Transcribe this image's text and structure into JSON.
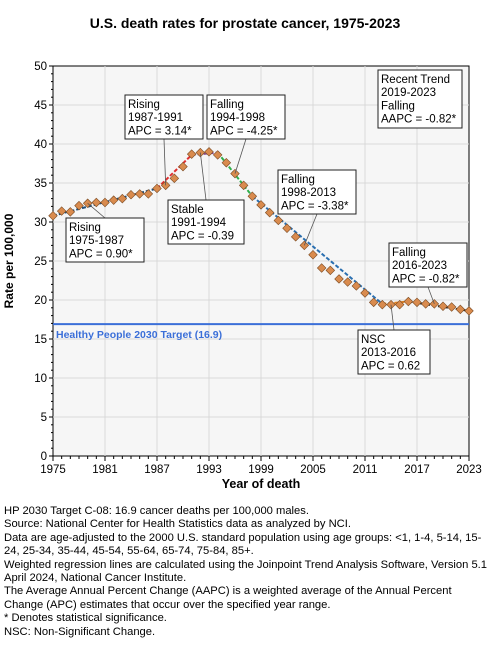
{
  "chart_data": {
    "type": "line",
    "title": "U.S. death rates for prostate cancer, 1975-2023",
    "xlabel": "Year of death",
    "ylabel": "Rate per 100,000",
    "xlim": [
      1975,
      2023
    ],
    "ylim": [
      0,
      50
    ],
    "x_ticks": [
      "1975",
      "1981",
      "1987",
      "1993",
      "1999",
      "2005",
      "2011",
      "2017",
      "2023"
    ],
    "y_ticks": [
      "0",
      "5",
      "10",
      "15",
      "20",
      "25",
      "30",
      "35",
      "40",
      "45",
      "50"
    ],
    "grid": true,
    "observed": {
      "x": [
        1975,
        1976,
        1977,
        1978,
        1979,
        1980,
        1981,
        1982,
        1983,
        1984,
        1985,
        1986,
        1987,
        1988,
        1989,
        1990,
        1991,
        1992,
        1993,
        1994,
        1995,
        1996,
        1997,
        1998,
        1999,
        2000,
        2001,
        2002,
        2003,
        2004,
        2005,
        2006,
        2007,
        2008,
        2009,
        2010,
        2011,
        2012,
        2013,
        2014,
        2015,
        2016,
        2017,
        2018,
        2019,
        2020,
        2021,
        2022,
        2023
      ],
      "y": [
        30.8,
        31.4,
        31.3,
        32.1,
        32.4,
        32.5,
        32.5,
        32.8,
        33.0,
        33.5,
        33.6,
        33.6,
        34.3,
        34.7,
        35.6,
        37.1,
        38.7,
        38.9,
        39.0,
        38.6,
        37.6,
        36.2,
        34.7,
        33.3,
        32.2,
        31.2,
        30.2,
        29.2,
        28.1,
        27.0,
        25.8,
        24.1,
        23.8,
        22.7,
        22.3,
        21.8,
        20.9,
        19.7,
        19.4,
        19.4,
        19.4,
        19.8,
        19.7,
        19.5,
        19.5,
        19.2,
        19.1,
        18.8,
        18.6
      ]
    },
    "segments": [
      {
        "start": 1975,
        "end": 1987,
        "y_start": 30.8,
        "y_end": 34.3,
        "color": "#1f4e79"
      },
      {
        "start": 1987,
        "end": 1991,
        "y_start": 34.3,
        "y_end": 38.6,
        "color": "#e03030"
      },
      {
        "start": 1991,
        "end": 1994,
        "y_start": 38.6,
        "y_end": 38.9,
        "color": "#8b4a8b"
      },
      {
        "start": 1994,
        "end": 1998,
        "y_start": 38.9,
        "y_end": 33.3,
        "color": "#2eae4a"
      },
      {
        "start": 1998,
        "end": 2013,
        "y_start": 33.3,
        "y_end": 19.5,
        "color": "#2a6fb0"
      },
      {
        "start": 2013,
        "end": 2016,
        "y_start": 19.5,
        "y_end": 19.8,
        "color": "#e08020"
      },
      {
        "start": 2016,
        "end": 2023,
        "y_start": 19.8,
        "y_end": 18.6,
        "color": "#222222"
      }
    ],
    "target": {
      "value": 16.9,
      "label": "Healthy People 2030 Target (16.9)",
      "color": "#3b6fd8"
    },
    "annotations": [
      {
        "lines": [
          "Rising",
          "1975-1987",
          "APC =  0.90*"
        ],
        "attach_year": 1979
      },
      {
        "lines": [
          "Rising",
          "1987-1991",
          "APC =  3.14*"
        ],
        "attach_year": 1988
      },
      {
        "lines": [
          "Falling",
          "1994-1998",
          "APC = -4.25*"
        ],
        "attach_year": 1996
      },
      {
        "lines": [
          "Stable",
          "1991-1994",
          "APC = -0.39"
        ],
        "attach_year": 1992
      },
      {
        "lines": [
          "Falling",
          "1998-2013",
          "APC = -3.38*"
        ],
        "attach_year": 2004
      },
      {
        "lines": [
          "Recent Trend",
          "2019-2023",
          "Falling",
          "AAPC = -0.82*"
        ],
        "attach_year": null
      },
      {
        "lines": [
          "Falling",
          "2016-2023",
          "APC = -0.82*"
        ],
        "attach_year": 2019
      },
      {
        "lines": [
          "NSC",
          "2013-2016",
          "APC =  0.62"
        ],
        "attach_year": 2014
      }
    ],
    "marker_color": "#d98b4e"
  },
  "notes": [
    "HP 2030 Target C-08: 16.9 cancer deaths per 100,000 males.",
    "Source: National Center for Health Statistics data as analyzed by NCI.",
    "Data are age-adjusted to the 2000 U.S. standard population using age groups: <1, 1-4, 5-14, 15-24, 25-34, 35-44, 45-54, 55-64, 65-74, 75-84, 85+.",
    "Weighted regression lines are calculated using the Joinpoint Trend Analysis Software, Version 5.1 April 2024, National Cancer Institute.",
    "The Average Annual Percent Change (AAPC) is a weighted average of the Annual Percent Change (APC) estimates that occur over the specified year range.",
    "* Denotes statistical significance.",
    "NSC: Non-Significant Change."
  ]
}
